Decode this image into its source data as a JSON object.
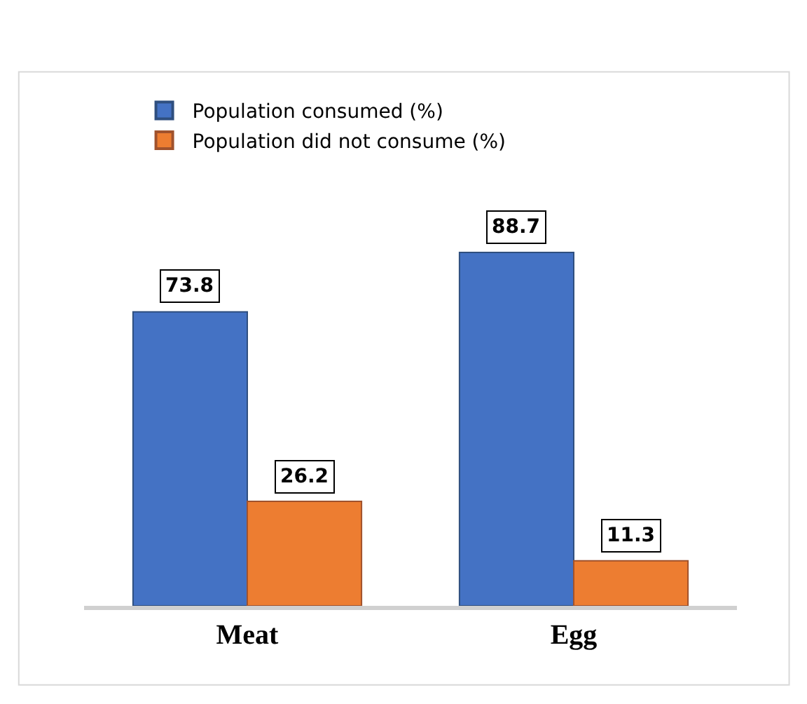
{
  "chart_data": {
    "type": "bar",
    "categories": [
      "Meat",
      "Egg"
    ],
    "series": [
      {
        "name": "Population consumed (%)",
        "color": "#4472c4",
        "values": [
          73.8,
          88.7
        ]
      },
      {
        "name": "Population did not consume (%)",
        "color": "#ed7d31",
        "values": [
          26.2,
          11.3
        ]
      }
    ],
    "data_labels": true,
    "legend": "top"
  }
}
